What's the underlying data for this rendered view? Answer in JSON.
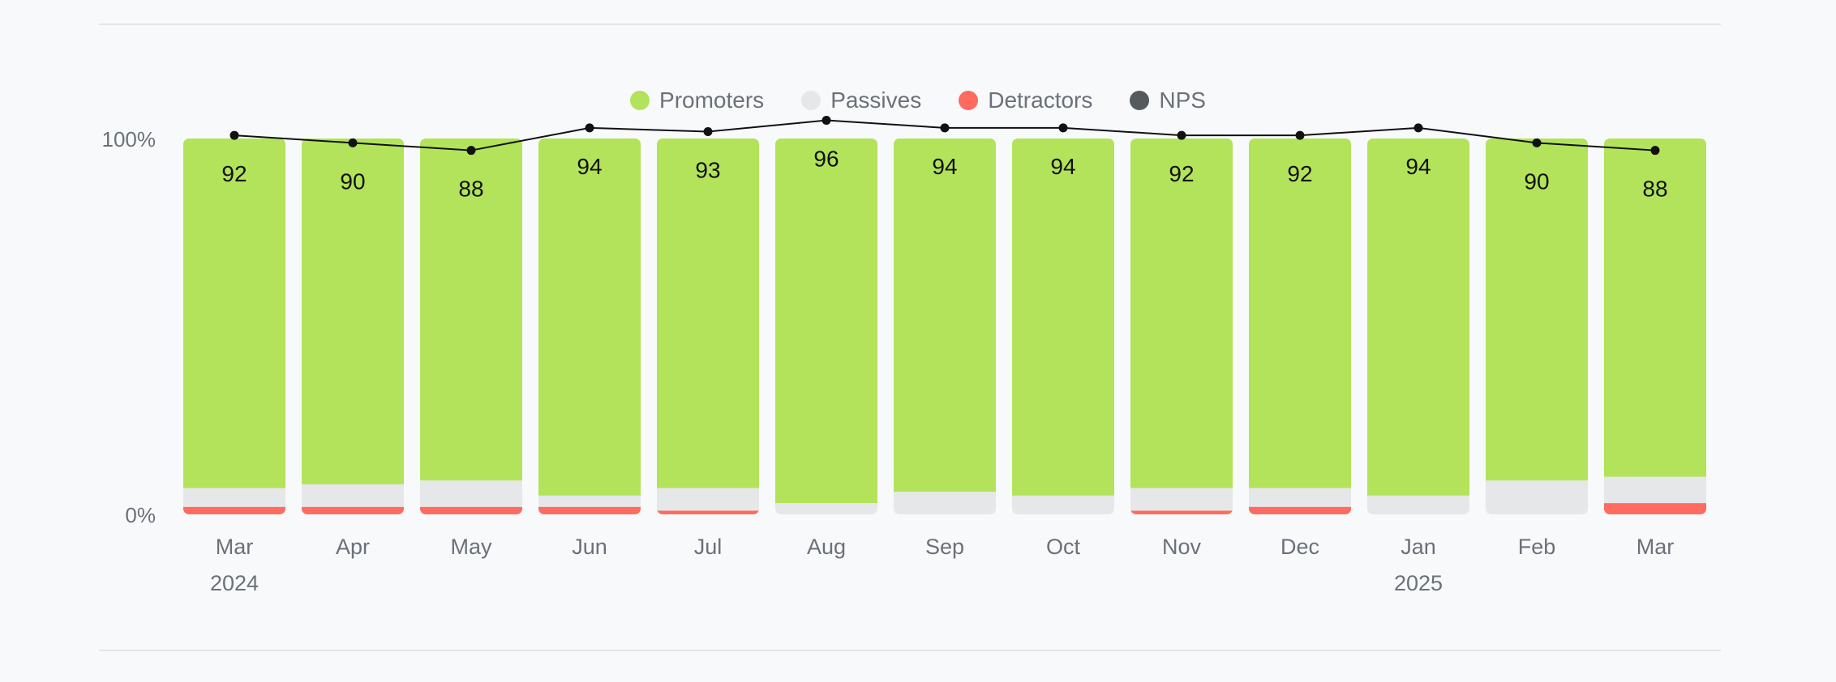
{
  "colors": {
    "promoters": "#b3e35a",
    "passives": "#e6e7e9",
    "detractors": "#ff6b5f",
    "nps": "#555a5e",
    "line": "#111111",
    "tick": "#6b7079"
  },
  "chart_data": {
    "type": "bar",
    "stacked": true,
    "categories": [
      "Mar",
      "Apr",
      "May",
      "Jun",
      "Jul",
      "Aug",
      "Sep",
      "Oct",
      "Nov",
      "Dec",
      "Jan",
      "Feb",
      "Mar"
    ],
    "year_labels": [
      "2024",
      "",
      "",
      "",
      "",
      "",
      "",
      "",
      "",
      "",
      "2025",
      "",
      ""
    ],
    "legend": [
      "Promoters",
      "Passives",
      "Detractors",
      "NPS"
    ],
    "legend_position": "top-center",
    "yaxis_ticks": [
      "100%",
      "0%"
    ],
    "ylim": [
      0,
      100
    ],
    "series": [
      {
        "name": "Detractors",
        "values": [
          2,
          2,
          2,
          2,
          1,
          0,
          0,
          0,
          1,
          2,
          0,
          0,
          3
        ]
      },
      {
        "name": "Passives",
        "values": [
          5,
          6,
          7,
          3,
          6,
          3,
          6,
          5,
          6,
          5,
          5,
          9,
          7
        ]
      },
      {
        "name": "Promoters",
        "values": [
          93,
          92,
          91,
          95,
          93,
          97,
          94,
          95,
          93,
          93,
          95,
          91,
          90
        ]
      },
      {
        "name": "NPS",
        "type": "line",
        "values": [
          92,
          90,
          88,
          94,
          93,
          96,
          94,
          94,
          92,
          92,
          94,
          90,
          88
        ]
      }
    ],
    "grid": false
  }
}
